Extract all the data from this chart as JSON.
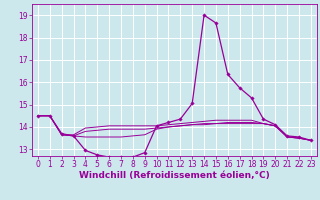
{
  "background_color": "#cce8ec",
  "grid_color": "#ffffff",
  "line_color": "#990099",
  "xlabel": "Windchill (Refroidissement éolien,°C)",
  "xlabel_fontsize": 6.5,
  "yticks": [
    13,
    14,
    15,
    16,
    17,
    18,
    19
  ],
  "xticks": [
    0,
    1,
    2,
    3,
    4,
    5,
    6,
    7,
    8,
    9,
    10,
    11,
    12,
    13,
    14,
    15,
    16,
    17,
    18,
    19,
    20,
    21,
    22,
    23
  ],
  "xlim": [
    -0.5,
    23.5
  ],
  "ylim": [
    12.7,
    19.5
  ],
  "line1_x": [
    0,
    1,
    2,
    3,
    4,
    5,
    6,
    7,
    8,
    9,
    10,
    11,
    12,
    13,
    14,
    15,
    16,
    17,
    18,
    19,
    20,
    21,
    22,
    23
  ],
  "line1_y": [
    14.5,
    14.5,
    13.7,
    13.6,
    12.95,
    12.75,
    12.65,
    12.65,
    12.65,
    12.85,
    14.05,
    14.2,
    14.35,
    15.05,
    19.0,
    18.65,
    16.35,
    15.75,
    15.3,
    14.35,
    14.1,
    13.6,
    13.55,
    13.4
  ],
  "line2_x": [
    0,
    1,
    2,
    3,
    4,
    5,
    6,
    7,
    8,
    9,
    10,
    11,
    12,
    13,
    14,
    15,
    16,
    17,
    18,
    19,
    20,
    21,
    22,
    23
  ],
  "line2_y": [
    14.5,
    14.5,
    13.65,
    13.6,
    13.55,
    13.55,
    13.55,
    13.55,
    13.6,
    13.65,
    13.9,
    14.0,
    14.05,
    14.1,
    14.1,
    14.15,
    14.15,
    14.15,
    14.15,
    14.15,
    14.05,
    13.55,
    13.5,
    13.4
  ],
  "line3_x": [
    0,
    1,
    2,
    3,
    4,
    5,
    6,
    7,
    8,
    9,
    10,
    11,
    12,
    13,
    14,
    15,
    16,
    17,
    18,
    19,
    20,
    21,
    22,
    23
  ],
  "line3_y": [
    14.5,
    14.5,
    13.65,
    13.6,
    13.8,
    13.85,
    13.9,
    13.9,
    13.9,
    13.9,
    13.95,
    14.0,
    14.05,
    14.1,
    14.15,
    14.15,
    14.2,
    14.2,
    14.2,
    14.15,
    14.05,
    13.55,
    13.5,
    13.4
  ],
  "line4_x": [
    0,
    1,
    2,
    3,
    4,
    5,
    6,
    7,
    8,
    9,
    10,
    11,
    12,
    13,
    14,
    15,
    16,
    17,
    18,
    19,
    20,
    21,
    22,
    23
  ],
  "line4_y": [
    14.5,
    14.5,
    13.65,
    13.65,
    13.95,
    14.0,
    14.05,
    14.05,
    14.05,
    14.05,
    14.05,
    14.1,
    14.15,
    14.2,
    14.25,
    14.3,
    14.3,
    14.3,
    14.3,
    14.15,
    14.05,
    13.55,
    13.5,
    13.4
  ],
  "tick_fontsize": 5.5,
  "tick_color": "#990099",
  "axis_color": "#990099"
}
